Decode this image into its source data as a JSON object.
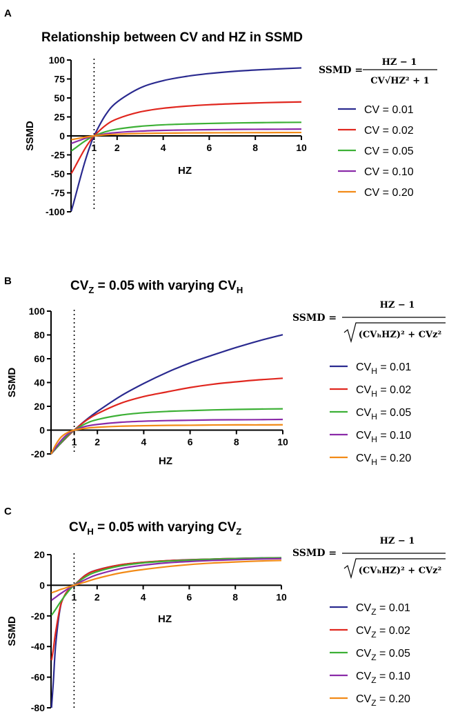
{
  "chart_data": [
    {
      "panel": "A",
      "type": "line",
      "title": "Relationship between CV and HZ in SSMD",
      "xlabel": "HZ",
      "ylabel": "SSMD",
      "xlim": [
        0,
        10
      ],
      "ylim": [
        -100,
        100
      ],
      "xticks": [
        "1",
        "2",
        "4",
        "6",
        "8",
        "10"
      ],
      "xtick_values": [
        1,
        2,
        4,
        6,
        8,
        10
      ],
      "yticks": [
        "100",
        "75",
        "50",
        "25",
        "0",
        "-25",
        "-50",
        "-75",
        "-100"
      ],
      "ytick_values": [
        100,
        75,
        50,
        25,
        0,
        -25,
        -50,
        -75,
        -100
      ],
      "vline_x": 1,
      "formula": {
        "lhs": "SSMD =",
        "numerator": "HZ − 1",
        "denominator": "CV√HZ² + 1"
      },
      "series": [
        {
          "name": "CV = 0.01",
          "label_main": "CV",
          "label_sub": "",
          "label_rest": " = 0.01",
          "color": "#2a2a8f",
          "x": [
            0.01,
            0.1,
            0.2,
            0.4,
            0.6,
            0.8,
            1,
            1.5,
            2,
            3,
            4,
            5,
            6,
            7,
            8,
            9,
            10
          ],
          "y": [
            -99,
            -89.6,
            -78.4,
            -55.7,
            -34.3,
            -15.6,
            0,
            27.7,
            44.7,
            63.2,
            72.8,
            78.4,
            82.2,
            84.9,
            86.8,
            88.3,
            89.6
          ]
        },
        {
          "name": "CV = 0.02",
          "label_main": "CV",
          "label_sub": "",
          "label_rest": " = 0.02",
          "color": "#e0261e",
          "x": [
            0.01,
            0.1,
            0.2,
            0.4,
            0.6,
            0.8,
            1,
            1.5,
            2,
            3,
            4,
            5,
            6,
            7,
            8,
            9,
            10
          ],
          "y": [
            -49.5,
            -44.8,
            -39.2,
            -27.9,
            -17.1,
            -7.8,
            0,
            13.9,
            22.4,
            31.6,
            36.4,
            39.2,
            41.1,
            42.4,
            43.4,
            44.2,
            44.8
          ]
        },
        {
          "name": "CV = 0.05",
          "label_main": "CV",
          "label_sub": "",
          "label_rest": " = 0.05",
          "color": "#3cb035",
          "x": [
            0.01,
            0.1,
            0.2,
            0.4,
            0.6,
            0.8,
            1,
            1.5,
            2,
            3,
            4,
            5,
            6,
            7,
            8,
            9,
            10
          ],
          "y": [
            -19.8,
            -17.9,
            -15.7,
            -11.1,
            -6.9,
            -3.1,
            0,
            5.5,
            8.9,
            12.6,
            14.6,
            15.7,
            16.4,
            17,
            17.4,
            17.7,
            17.9
          ]
        },
        {
          "name": "CV = 0.10",
          "label_main": "CV",
          "label_sub": "",
          "label_rest": " = 0.10",
          "color": "#8a2aa8",
          "x": [
            0.01,
            0.1,
            0.2,
            0.4,
            0.6,
            0.8,
            1,
            1.5,
            2,
            3,
            4,
            5,
            6,
            7,
            8,
            9,
            10
          ],
          "y": [
            -9.9,
            -9,
            -7.8,
            -5.6,
            -3.4,
            -1.6,
            0,
            2.8,
            4.5,
            6.3,
            7.3,
            7.8,
            8.2,
            8.5,
            8.7,
            8.8,
            9
          ]
        },
        {
          "name": "CV = 0.20",
          "label_main": "CV",
          "label_sub": "",
          "label_rest": " = 0.20",
          "color": "#f28a16",
          "x": [
            0.01,
            0.1,
            0.2,
            0.4,
            0.6,
            0.8,
            1,
            1.5,
            2,
            3,
            4,
            5,
            6,
            7,
            8,
            9,
            10
          ],
          "y": [
            -4.9,
            -4.5,
            -3.9,
            -2.8,
            -1.7,
            -0.8,
            0,
            1.4,
            2.2,
            3.2,
            3.6,
            3.9,
            4.1,
            4.2,
            4.3,
            4.4,
            4.5
          ]
        }
      ]
    },
    {
      "panel": "B",
      "type": "line",
      "title_main": "CV",
      "title_sub1": "Z",
      "title_mid": " = 0.05 with varying CV",
      "title_sub2": "H",
      "xlabel": "HZ",
      "ylabel": "SSMD",
      "xlim": [
        0,
        10
      ],
      "ylim": [
        -20,
        100
      ],
      "xticks": [
        "1",
        "2",
        "4",
        "6",
        "8",
        "10"
      ],
      "xtick_values": [
        1,
        2,
        4,
        6,
        8,
        10
      ],
      "yticks": [
        "100",
        "80",
        "60",
        "40",
        "20",
        "0",
        "-20"
      ],
      "ytick_values": [
        100,
        80,
        60,
        40,
        20,
        0,
        -20
      ],
      "vline_x": 1,
      "formula": {
        "lhs": "SSMD =",
        "numerator": "HZ − 1",
        "denominator": "(CVₕHZ)² + CVz²"
      },
      "series": [
        {
          "name": "CVH = 0.01",
          "label_main": "CV",
          "label_sub": "H",
          "label_rest": " = 0.01",
          "color": "#2a2a8f",
          "x": [
            0,
            0.2,
            0.4,
            0.6,
            0.8,
            1,
            1.5,
            2,
            3,
            4,
            5,
            6,
            7,
            8,
            9,
            10
          ],
          "y": [
            -20,
            -15.7,
            -11.5,
            -7.5,
            -3.7,
            0,
            8.4,
            15.7,
            28.6,
            39.2,
            48.5,
            56.5,
            63.2,
            69.5,
            75.2,
            80.2
          ]
        },
        {
          "name": "CVH = 0.02",
          "label_main": "CV",
          "label_sub": "H",
          "label_rest": " = 0.02",
          "color": "#e0261e",
          "x": [
            0,
            0.2,
            0.4,
            0.6,
            0.8,
            1,
            1.5,
            2,
            3,
            4,
            5,
            6,
            7,
            8,
            9,
            10
          ],
          "y": [
            -20,
            -15.6,
            -11.3,
            -7.3,
            -3.6,
            0,
            7.9,
            13.8,
            22.5,
            28.2,
            32.1,
            35.8,
            38.6,
            40.6,
            42.3,
            43.6
          ]
        },
        {
          "name": "CVH = 0.05",
          "label_main": "CV",
          "label_sub": "H",
          "label_rest": " = 0.05",
          "color": "#3cb035",
          "x": [
            0,
            0.2,
            0.4,
            0.6,
            0.8,
            1,
            1.5,
            2,
            3,
            4,
            5,
            6,
            7,
            8,
            9,
            10
          ],
          "y": [
            -20,
            -15.7,
            -11.1,
            -6.9,
            -3.1,
            0,
            5.5,
            8.9,
            12.6,
            14.6,
            15.7,
            16.4,
            17,
            17.4,
            17.7,
            17.9
          ]
        },
        {
          "name": "CVH = 0.10",
          "label_main": "CV",
          "label_sub": "H",
          "label_rest": " = 0.10",
          "color": "#8a2aa8",
          "x": [
            0,
            0.2,
            0.4,
            0.6,
            0.8,
            1,
            1.5,
            2,
            3,
            4,
            5,
            6,
            7,
            8,
            9,
            10
          ],
          "y": [
            -20,
            -14.7,
            -9.5,
            -5.3,
            -2.3,
            0,
            3.2,
            4.8,
            6.6,
            7.5,
            8,
            8.3,
            8.6,
            8.7,
            8.8,
            9
          ]
        },
        {
          "name": "CVH = 0.20",
          "label_main": "CV",
          "label_sub": "H",
          "label_rest": " = 0.20",
          "color": "#f28a16",
          "x": [
            0,
            0.2,
            0.4,
            0.6,
            0.8,
            1,
            1.5,
            2,
            3,
            4,
            5,
            6,
            7,
            8,
            9,
            10
          ],
          "y": [
            -20,
            -12.4,
            -6.6,
            -3.3,
            -1.3,
            0,
            1.6,
            2.4,
            3.3,
            3.7,
            4,
            4.1,
            4.3,
            4.4,
            4.4,
            4.5
          ]
        }
      ]
    },
    {
      "panel": "C",
      "type": "line",
      "title_main": "CV",
      "title_sub1": "H",
      "title_mid": " = 0.05 with varying CV",
      "title_sub2": "Z",
      "xlabel": "HZ",
      "ylabel": "SSMD",
      "xlim": [
        0,
        10
      ],
      "ylim": [
        -80,
        20
      ],
      "xticks": [
        "1",
        "2",
        "4",
        "6",
        "8",
        "10"
      ],
      "xtick_values": [
        1,
        2,
        4,
        6,
        8,
        10
      ],
      "yticks": [
        "20",
        "0",
        "-20",
        "-40",
        "-60",
        "-80"
      ],
      "ytick_values": [
        20,
        0,
        -20,
        -40,
        -60,
        -80
      ],
      "vline_x": 1,
      "formula": {
        "lhs": "SSMD =",
        "numerator": "HZ − 1",
        "denominator": "(CVₕHZ)² + CVz²"
      },
      "series": [
        {
          "name": "CVZ = 0.01",
          "label_main": "CV",
          "label_sub": "Z",
          "label_rest": " = 0.01",
          "color": "#2a2a8f",
          "x": [
            0.02,
            0.1,
            0.2,
            0.4,
            0.6,
            0.8,
            1,
            1.5,
            2,
            3,
            4,
            5,
            6,
            7,
            8,
            9,
            10
          ],
          "y": [
            -80,
            -63.1,
            -39.2,
            -14.7,
            -6.5,
            -2.5,
            0,
            6.7,
            10,
            13.3,
            15,
            16,
            16.7,
            17.1,
            17.5,
            17.8,
            18
          ]
        },
        {
          "name": "CVZ = 0.02",
          "label_main": "CV",
          "label_sub": "Z",
          "label_rest": " = 0.02",
          "color": "#e0261e",
          "x": [
            0.02,
            0.1,
            0.2,
            0.4,
            0.6,
            0.8,
            1,
            1.5,
            2,
            3,
            4,
            5,
            6,
            7,
            8,
            9,
            10
          ],
          "y": [
            -49,
            -41.8,
            -30.6,
            -13.9,
            -6.3,
            -2.4,
            0,
            6.6,
            9.9,
            13.3,
            15,
            16,
            16.6,
            17.1,
            17.5,
            17.7,
            17.9
          ]
        },
        {
          "name": "CVZ = 0.05",
          "label_main": "CV",
          "label_sub": "Z",
          "label_rest": " = 0.05",
          "color": "#3cb035",
          "x": [
            0.02,
            0.1,
            0.2,
            0.4,
            0.6,
            0.8,
            1,
            1.5,
            2,
            3,
            4,
            5,
            6,
            7,
            8,
            9,
            10
          ],
          "y": [
            -19.6,
            -17.9,
            -15.7,
            -11.1,
            -6.9,
            -3.1,
            0,
            5.5,
            8.9,
            12.6,
            14.6,
            15.7,
            16.4,
            17,
            17.4,
            17.7,
            17.9
          ]
        },
        {
          "name": "CVZ = 0.10",
          "label_main": "CV",
          "label_sub": "Z",
          "label_rest": " = 0.10",
          "color": "#8a2aa8",
          "x": [
            0.02,
            0.1,
            0.2,
            0.4,
            0.6,
            0.8,
            1,
            1.5,
            2,
            3,
            4,
            5,
            6,
            7,
            8,
            9,
            10
          ],
          "y": [
            -9.8,
            -8.9,
            -7.8,
            -5.6,
            -3.6,
            -1.7,
            0,
            3.8,
            6.9,
            10.8,
            13.1,
            14.6,
            15.5,
            16.2,
            16.7,
            17.1,
            17.4
          ]
        },
        {
          "name": "CVZ = 0.20",
          "label_main": "CV",
          "label_sub": "Z",
          "label_rest": " = 0.20",
          "color": "#f28a16",
          "x": [
            0.02,
            0.1,
            0.2,
            0.4,
            0.6,
            0.8,
            1,
            1.5,
            2,
            3,
            4,
            5,
            6,
            7,
            8,
            9,
            10
          ],
          "y": [
            -4.9,
            -4.5,
            -4,
            -2.8,
            -1.9,
            -0.9,
            0,
            2.2,
            4.5,
            8,
            10.3,
            12.1,
            13.5,
            14.5,
            15.2,
            15.8,
            16.2
          ]
        }
      ]
    }
  ]
}
